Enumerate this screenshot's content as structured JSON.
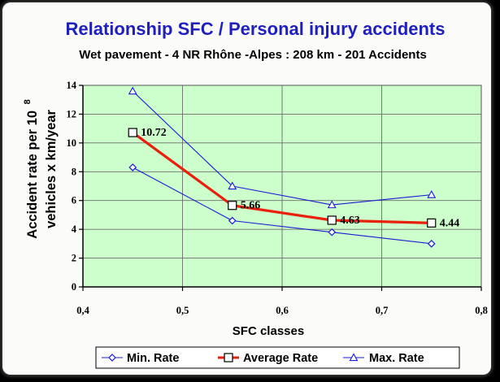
{
  "chart_data": {
    "type": "line",
    "title": "Relationship SFC / Personal injury accidents",
    "subtitle": "Wet pavement  -   4 NR Rhône -Alpes : 208 km - 201 Accidents",
    "xlabel": "SFC classes",
    "ylabel_line1": "Accident rate per 10",
    "ylabel_sup": "8",
    "ylabel_line2": "vehicles x km/year",
    "xlim": [
      0.4,
      0.8
    ],
    "ylim": [
      0,
      14
    ],
    "x_ticks": [
      "0,4",
      "0,5",
      "0,6",
      "0,7",
      "0,8"
    ],
    "y_ticks": [
      "0",
      "2",
      "4",
      "6",
      "8",
      "10",
      "12",
      "14"
    ],
    "x": [
      0.45,
      0.55,
      0.65,
      0.75
    ],
    "series": [
      {
        "name": "Min. Rate",
        "values": [
          8.3,
          4.6,
          3.8,
          3.0
        ],
        "color": "#1a1ad6",
        "marker": "diamond"
      },
      {
        "name": "Average Rate",
        "values": [
          10.72,
          5.66,
          4.63,
          4.44
        ],
        "color": "#e8200c",
        "marker": "square",
        "labels": [
          "10.72",
          "5.66",
          "4.63",
          "4.44"
        ]
      },
      {
        "name": "Max. Rate",
        "values": [
          13.6,
          7.0,
          5.7,
          6.4
        ],
        "color": "#1a1ad6",
        "marker": "triangle"
      }
    ],
    "grid": "vertical and horizontal",
    "legend_position": "bottom",
    "plot_background": "#ccffcc",
    "title_color": "#1f1fbf"
  }
}
